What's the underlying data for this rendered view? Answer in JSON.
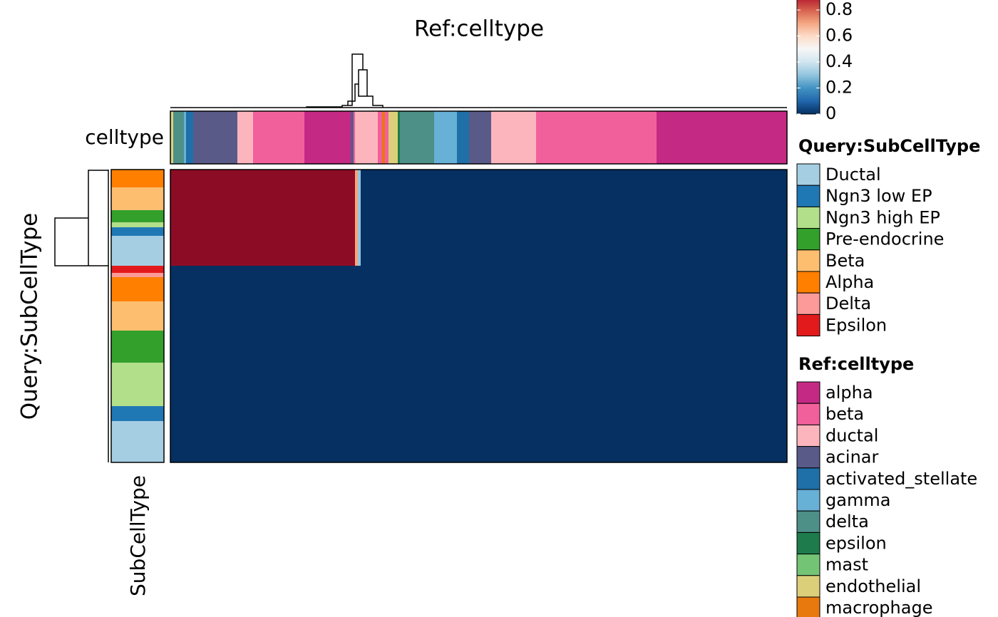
{
  "chart_data": {
    "type": "heatmap",
    "title": "Ref:celltype",
    "column_annotation_label": "celltype",
    "row_title": "Query:SubCellType",
    "row_annotation_label": "SubCellType",
    "palette": [
      "#053061",
      "#2166ac",
      "#4393c3",
      "#92c5de",
      "#d1e5f0",
      "#f7f7f7",
      "#fddbc7",
      "#f4a582",
      "#d6604d",
      "#b2182b",
      "#67001f"
    ],
    "color_lim": [
      0,
      1
    ],
    "color_ticks": [
      0,
      0.2,
      0.4,
      0.6,
      0.8
    ],
    "row_legend": {
      "title": "Query:SubCellType",
      "items": [
        {
          "name": "Ductal",
          "color": "#a6cee3"
        },
        {
          "name": "Ngn3 low EP",
          "color": "#1f78b4"
        },
        {
          "name": "Ngn3 high EP",
          "color": "#b2df8a"
        },
        {
          "name": "Pre-endocrine",
          "color": "#33a02c"
        },
        {
          "name": "Beta",
          "color": "#fdbf6f"
        },
        {
          "name": "Alpha",
          "color": "#ff7f00"
        },
        {
          "name": "Delta",
          "color": "#fb9a99"
        },
        {
          "name": "Epsilon",
          "color": "#e31a1c"
        }
      ]
    },
    "column_legend": {
      "title": "Ref:celltype",
      "items": [
        {
          "name": "alpha",
          "color": "#c42a84"
        },
        {
          "name": "beta",
          "color": "#f2609c"
        },
        {
          "name": "ductal",
          "color": "#fdb5bd"
        },
        {
          "name": "acinar",
          "color": "#5a5a89"
        },
        {
          "name": "activated_stellate",
          "color": "#1f6fa8"
        },
        {
          "name": "gamma",
          "color": "#67b0d6"
        },
        {
          "name": "delta",
          "color": "#4c9088"
        },
        {
          "name": "epsilon",
          "color": "#1e7b4b"
        },
        {
          "name": "mast",
          "color": "#74c476"
        },
        {
          "name": "endothelial",
          "color": "#dccf7a"
        },
        {
          "name": "macrophage",
          "color": "#e8790f"
        }
      ]
    },
    "rows": [
      {
        "group": "Alpha",
        "n": 25
      },
      {
        "group": "Beta",
        "n": 32
      },
      {
        "group": "Pre-endocrine",
        "n": 17
      },
      {
        "group": "Ngn3 high EP",
        "n": 7
      },
      {
        "group": "Ngn3 low EP",
        "n": 12
      },
      {
        "group": "Ductal",
        "n": 42
      },
      {
        "group": "Epsilon",
        "n": 10
      },
      {
        "group": "Delta",
        "n": 6
      },
      {
        "group": "Alpha",
        "n": 34
      },
      {
        "group": "Beta",
        "n": 41
      },
      {
        "group": "Pre-endocrine",
        "n": 45
      },
      {
        "group": "Ngn3 high EP",
        "n": 61
      },
      {
        "group": "Ngn3 low EP",
        "n": 21
      },
      {
        "group": "Ductal",
        "n": 58
      }
    ],
    "columns": [
      {
        "group": "endothelial",
        "n": 4
      },
      {
        "group": "delta",
        "n": 15
      },
      {
        "group": "gamma",
        "n": 3
      },
      {
        "group": "activated_stellate",
        "n": 10
      },
      {
        "group": "acinar",
        "n": 62
      },
      {
        "group": "ductal",
        "n": 22
      },
      {
        "group": "beta",
        "n": 72
      },
      {
        "group": "alpha",
        "n": 65
      },
      {
        "group": "acinar",
        "n": 4
      },
      {
        "group": "beta",
        "n": 2
      },
      {
        "group": "ductal",
        "n": 4
      },
      {
        "group": "ductal",
        "n": 4
      },
      {
        "group": "ductal",
        "n": 24
      },
      {
        "group": "beta",
        "n": 6
      },
      {
        "group": "macrophage",
        "n": 4
      },
      {
        "group": "beta",
        "n": 5
      },
      {
        "group": "endothelial",
        "n": 13
      },
      {
        "group": "epsilon",
        "n": 3
      },
      {
        "group": "delta",
        "n": 48
      },
      {
        "group": "gamma",
        "n": 32
      },
      {
        "group": "activated_stellate",
        "n": 17
      },
      {
        "group": "acinar",
        "n": 31
      },
      {
        "group": "ductal",
        "n": 63
      },
      {
        "group": "beta",
        "n": 169
      },
      {
        "group": "alpha",
        "n": 183
      }
    ],
    "values": [
      [
        0.95,
        0.95,
        0.95,
        0.95,
        0.95,
        0.95,
        0.95,
        0.95,
        0.95,
        0.95,
        0.7,
        0.3,
        0,
        0,
        0,
        0,
        0,
        0,
        0,
        0,
        0,
        0,
        0,
        0,
        0
      ],
      [
        0.95,
        0.95,
        0.95,
        0.95,
        0.95,
        0.95,
        0.95,
        0.95,
        0.95,
        0.95,
        0.7,
        0.3,
        0,
        0,
        0,
        0,
        0,
        0,
        0,
        0,
        0,
        0,
        0,
        0,
        0
      ],
      [
        0.95,
        0.95,
        0.95,
        0.95,
        0.95,
        0.95,
        0.95,
        0.95,
        0.95,
        0.95,
        0.7,
        0.3,
        0,
        0,
        0,
        0,
        0,
        0,
        0,
        0,
        0,
        0,
        0,
        0,
        0
      ],
      [
        0.95,
        0.95,
        0.95,
        0.95,
        0.95,
        0.95,
        0.95,
        0.95,
        0.95,
        0.95,
        0.7,
        0.3,
        0,
        0,
        0,
        0,
        0,
        0,
        0,
        0,
        0,
        0,
        0,
        0,
        0
      ],
      [
        0.95,
        0.95,
        0.95,
        0.95,
        0.95,
        0.95,
        0.95,
        0.95,
        0.95,
        0.95,
        0.7,
        0.3,
        0,
        0,
        0,
        0,
        0,
        0,
        0,
        0,
        0,
        0,
        0,
        0,
        0
      ],
      [
        0.95,
        0.95,
        0.95,
        0.95,
        0.95,
        0.95,
        0.95,
        0.95,
        0.95,
        0.95,
        0.7,
        0.3,
        0,
        0,
        0,
        0,
        0,
        0,
        0,
        0,
        0,
        0,
        0,
        0,
        0
      ],
      [
        0,
        0,
        0,
        0,
        0,
        0,
        0,
        0,
        0,
        0,
        0,
        0,
        0,
        0,
        0,
        0,
        0,
        0,
        0,
        0,
        0,
        0,
        0,
        0,
        0
      ],
      [
        0,
        0,
        0,
        0,
        0,
        0,
        0,
        0,
        0,
        0,
        0,
        0,
        0,
        0,
        0,
        0,
        0,
        0,
        0,
        0,
        0,
        0,
        0,
        0,
        0
      ],
      [
        0,
        0,
        0,
        0,
        0,
        0,
        0,
        0,
        0,
        0,
        0,
        0,
        0,
        0,
        0,
        0,
        0,
        0,
        0,
        0,
        0,
        0,
        0,
        0,
        0
      ],
      [
        0,
        0,
        0,
        0,
        0,
        0,
        0,
        0,
        0,
        0,
        0,
        0,
        0,
        0,
        0,
        0,
        0,
        0,
        0,
        0,
        0,
        0,
        0,
        0,
        0
      ],
      [
        0,
        0,
        0,
        0,
        0,
        0,
        0,
        0,
        0,
        0,
        0,
        0,
        0,
        0,
        0,
        0,
        0,
        0,
        0,
        0,
        0,
        0,
        0,
        0,
        0
      ],
      [
        0,
        0,
        0,
        0,
        0,
        0,
        0,
        0,
        0,
        0,
        0,
        0,
        0,
        0,
        0,
        0,
        0,
        0,
        0,
        0,
        0,
        0,
        0,
        0,
        0
      ],
      [
        0,
        0,
        0,
        0,
        0,
        0,
        0,
        0,
        0,
        0,
        0,
        0,
        0,
        0,
        0,
        0,
        0,
        0,
        0,
        0,
        0,
        0,
        0,
        0,
        0
      ],
      [
        0,
        0,
        0,
        0,
        0,
        0,
        0,
        0,
        0,
        0,
        0,
        0,
        0,
        0,
        0,
        0,
        0,
        0,
        0,
        0,
        0,
        0,
        0,
        0,
        0
      ]
    ]
  }
}
